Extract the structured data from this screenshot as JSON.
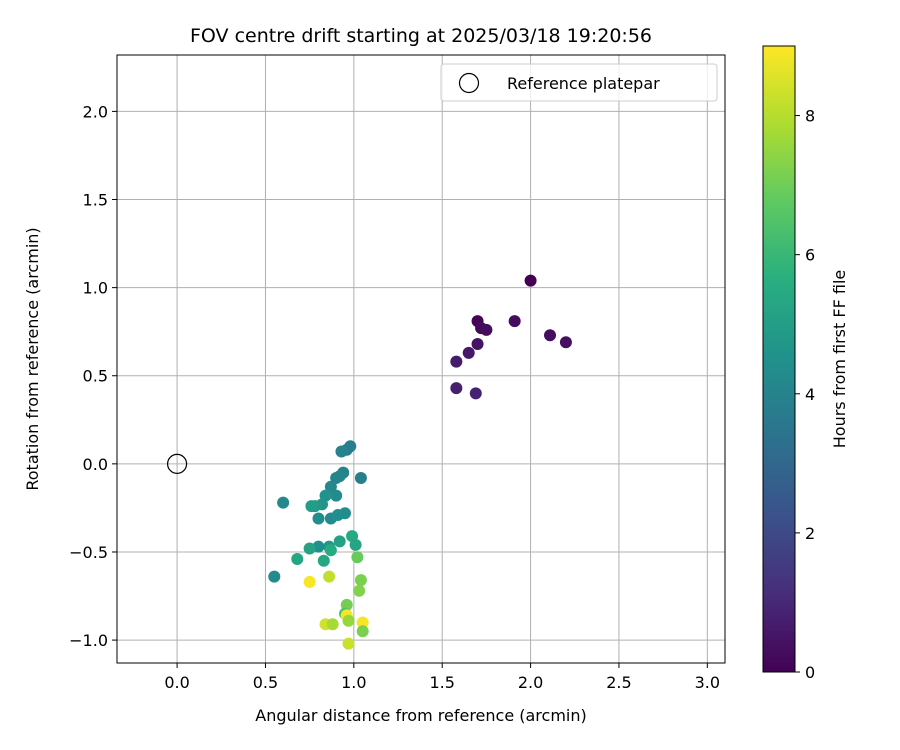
{
  "chart_data": {
    "type": "scatter",
    "title": "FOV centre drift starting at 2025/03/18 19:20:56",
    "xlabel": "Angular distance from reference (arcmin)",
    "ylabel": "Rotation from reference (arcmin)",
    "xlim": [
      -0.34,
      3.1
    ],
    "ylim": [
      -1.13,
      2.32
    ],
    "x_ticks": [
      0.0,
      0.5,
      1.0,
      1.5,
      2.0,
      2.5,
      3.0
    ],
    "x_tick_labels": [
      "0.0",
      "0.5",
      "1.0",
      "1.5",
      "2.0",
      "2.5",
      "3.0"
    ],
    "y_ticks": [
      -1.0,
      -0.5,
      0.0,
      0.5,
      1.0,
      1.5,
      2.0
    ],
    "y_tick_labels": [
      "−1.0",
      "−0.5",
      "0.0",
      "0.5",
      "1.0",
      "1.5",
      "2.0"
    ],
    "grid": true,
    "colormap": "viridis",
    "colorbar": {
      "label": "Hours from first FF file",
      "range": [
        0,
        9
      ],
      "ticks": [
        0,
        2,
        4,
        6,
        8
      ],
      "tick_labels": [
        "0",
        "2",
        "4",
        "6",
        "8"
      ]
    },
    "legend": {
      "placement": "top-right",
      "entries": [
        {
          "label": "Reference platepar",
          "marker": "open-circle"
        }
      ]
    },
    "reference_point": {
      "x": 0.0,
      "y": 0.0
    },
    "points": [
      {
        "x": 2.0,
        "y": 1.04,
        "c": 0.0
      },
      {
        "x": 1.7,
        "y": 0.81,
        "c": 0.1
      },
      {
        "x": 1.72,
        "y": 0.77,
        "c": 0.2
      },
      {
        "x": 1.75,
        "y": 0.76,
        "c": 0.25
      },
      {
        "x": 1.91,
        "y": 0.81,
        "c": 0.3
      },
      {
        "x": 2.11,
        "y": 0.73,
        "c": 0.35
      },
      {
        "x": 2.2,
        "y": 0.69,
        "c": 0.4
      },
      {
        "x": 1.7,
        "y": 0.68,
        "c": 0.5
      },
      {
        "x": 1.65,
        "y": 0.63,
        "c": 0.6
      },
      {
        "x": 1.58,
        "y": 0.58,
        "c": 0.7
      },
      {
        "x": 1.58,
        "y": 0.43,
        "c": 0.8
      },
      {
        "x": 1.69,
        "y": 0.4,
        "c": 0.9
      },
      {
        "x": 0.98,
        "y": 0.1,
        "c": 3.8
      },
      {
        "x": 0.96,
        "y": 0.08,
        "c": 3.9
      },
      {
        "x": 0.93,
        "y": 0.07,
        "c": 4.0
      },
      {
        "x": 0.94,
        "y": -0.05,
        "c": 4.0
      },
      {
        "x": 0.92,
        "y": -0.07,
        "c": 4.1
      },
      {
        "x": 0.9,
        "y": -0.08,
        "c": 4.1
      },
      {
        "x": 1.04,
        "y": -0.08,
        "c": 3.9
      },
      {
        "x": 0.87,
        "y": -0.13,
        "c": 4.2
      },
      {
        "x": 0.9,
        "y": -0.18,
        "c": 4.3
      },
      {
        "x": 0.84,
        "y": -0.18,
        "c": 4.6
      },
      {
        "x": 0.82,
        "y": -0.23,
        "c": 4.7
      },
      {
        "x": 0.6,
        "y": -0.22,
        "c": 4.2
      },
      {
        "x": 0.78,
        "y": -0.24,
        "c": 4.8
      },
      {
        "x": 0.76,
        "y": -0.24,
        "c": 5.0
      },
      {
        "x": 0.8,
        "y": -0.31,
        "c": 4.4
      },
      {
        "x": 0.87,
        "y": -0.31,
        "c": 4.3
      },
      {
        "x": 0.91,
        "y": -0.29,
        "c": 4.5
      },
      {
        "x": 0.95,
        "y": -0.28,
        "c": 4.4
      },
      {
        "x": 0.99,
        "y": -0.41,
        "c": 5.5
      },
      {
        "x": 1.01,
        "y": -0.46,
        "c": 5.3
      },
      {
        "x": 0.92,
        "y": -0.44,
        "c": 5.2
      },
      {
        "x": 0.86,
        "y": -0.47,
        "c": 4.8
      },
      {
        "x": 0.8,
        "y": -0.47,
        "c": 4.5
      },
      {
        "x": 0.75,
        "y": -0.48,
        "c": 5.2
      },
      {
        "x": 0.87,
        "y": -0.49,
        "c": 5.6
      },
      {
        "x": 0.68,
        "y": -0.54,
        "c": 5.3
      },
      {
        "x": 0.83,
        "y": -0.55,
        "c": 5.4
      },
      {
        "x": 1.02,
        "y": -0.53,
        "c": 6.9
      },
      {
        "x": 0.55,
        "y": -0.64,
        "c": 4.3
      },
      {
        "x": 0.86,
        "y": -0.64,
        "c": 8.2
      },
      {
        "x": 0.75,
        "y": -0.67,
        "c": 8.9
      },
      {
        "x": 1.04,
        "y": -0.66,
        "c": 7.2
      },
      {
        "x": 1.03,
        "y": -0.72,
        "c": 7.3
      },
      {
        "x": 0.96,
        "y": -0.8,
        "c": 7.1
      },
      {
        "x": 0.95,
        "y": -0.85,
        "c": 6.5
      },
      {
        "x": 0.96,
        "y": -0.86,
        "c": 8.9
      },
      {
        "x": 0.97,
        "y": -0.89,
        "c": 7.6
      },
      {
        "x": 1.05,
        "y": -0.9,
        "c": 8.9
      },
      {
        "x": 0.84,
        "y": -0.91,
        "c": 8.4
      },
      {
        "x": 0.88,
        "y": -0.91,
        "c": 7.8
      },
      {
        "x": 1.05,
        "y": -0.95,
        "c": 7.2
      },
      {
        "x": 0.97,
        "y": -1.02,
        "c": 8.3
      }
    ]
  }
}
